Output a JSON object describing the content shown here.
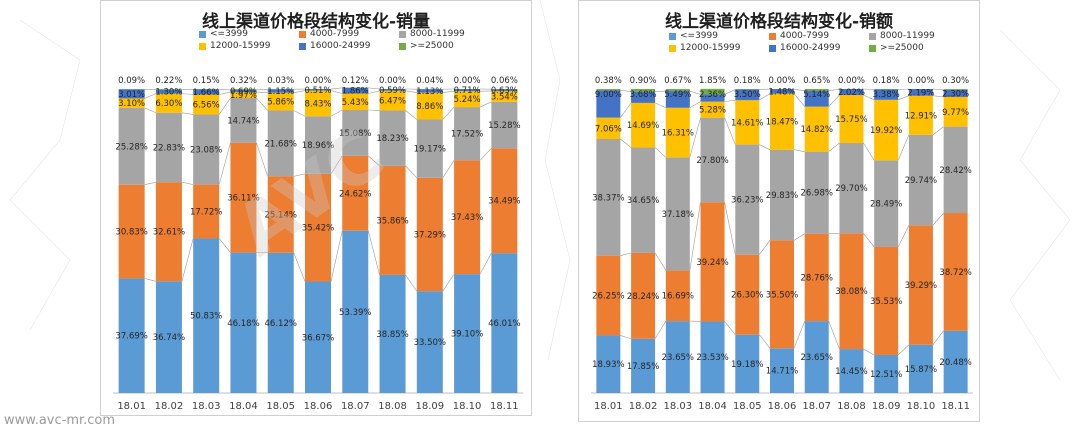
{
  "website": "www.avc-mr.com",
  "watermark": "AVC",
  "colors": {
    "c1": "#5b9bd5",
    "c2": "#ed7d31",
    "c3": "#a5a5a5",
    "c4": "#ffc000",
    "c5": "#4472c4",
    "c6": "#70ad47"
  },
  "chart_data": [
    {
      "type": "bar",
      "stacked": true,
      "title": "线上渠道价格段结构变化-销量",
      "categories": [
        "18.01",
        "18.02",
        "18.03",
        "18.04",
        "18.05",
        "18.06",
        "18.07",
        "18.08",
        "18.09",
        "18.10",
        "18.11"
      ],
      "ylim": [
        0,
        100
      ],
      "series": [
        {
          "name": "<=3999",
          "labels": [
            "37.69%",
            "36.74%",
            "50.83%",
            "46.18%",
            "46.12%",
            "36.67%",
            "53.39%",
            "38.85%",
            "33.50%",
            "39.10%",
            "46.01%"
          ],
          "values": [
            37.69,
            36.74,
            50.83,
            46.18,
            46.12,
            36.67,
            53.39,
            38.85,
            33.5,
            39.1,
            46.01
          ]
        },
        {
          "name": "4000-7999",
          "labels": [
            "30.83%",
            "32.61%",
            "17.72%",
            "36.11%",
            "25.14%",
            "35.42%",
            "24.62%",
            "35.86%",
            "37.29%",
            "37.43%",
            "34.49%"
          ],
          "values": [
            30.83,
            32.61,
            17.72,
            36.11,
            25.14,
            35.42,
            24.62,
            35.86,
            37.29,
            37.43,
            34.49
          ]
        },
        {
          "name": "8000-11999",
          "labels": [
            "25.28%",
            "22.83%",
            "23.08%",
            "14.74%",
            "21.68%",
            "18.96%",
            "15.08%",
            "18.23%",
            "19.17%",
            "17.52%",
            "15.28%"
          ],
          "values": [
            25.28,
            22.83,
            23.08,
            14.74,
            21.68,
            18.96,
            15.08,
            18.23,
            19.17,
            17.52,
            15.28
          ]
        },
        {
          "name": "12000-15999",
          "labels": [
            "3.10%",
            "6.30%",
            "6.56%",
            "1.97%",
            "5.86%",
            "8.43%",
            "5.43%",
            "6.47%",
            "8.86%",
            "5.24%",
            "3.54%"
          ],
          "values": [
            3.1,
            6.3,
            6.56,
            1.97,
            5.86,
            8.43,
            5.43,
            6.47,
            8.86,
            5.24,
            3.54
          ]
        },
        {
          "name": "16000-24999",
          "labels": [
            "3.01%",
            "1.30%",
            "1.66%",
            "0.69%",
            "1.15%",
            "0.51%",
            "1.86%",
            "0.59%",
            "1.13%",
            "0.71%",
            "0.63%"
          ],
          "values": [
            3.01,
            1.3,
            1.66,
            0.69,
            1.15,
            0.51,
            1.86,
            0.59,
            1.13,
            0.71,
            0.63
          ]
        },
        {
          "name": ">=25000",
          "labels": [
            "0.09%",
            "0.22%",
            "0.15%",
            "0.32%",
            "0.03%",
            "0.00%",
            "0.12%",
            "0.00%",
            "0.04%",
            "0.00%",
            "0.06%"
          ],
          "values": [
            0.09,
            0.22,
            0.15,
            0.32,
            0.03,
            0.0,
            0.12,
            0.0,
            0.04,
            0.0,
            0.06
          ]
        }
      ]
    },
    {
      "type": "bar",
      "stacked": true,
      "title": "线上渠道价格段结构变化-销额",
      "categories": [
        "18.01",
        "18.02",
        "18.03",
        "18.04",
        "18.05",
        "18.06",
        "18.07",
        "18.08",
        "18.09",
        "18.10",
        "18.11"
      ],
      "ylim": [
        0,
        100
      ],
      "series": [
        {
          "name": "<=3999",
          "labels": [
            "18.93%",
            "17.85%",
            "23.65%",
            "23.53%",
            "19.18%",
            "14.71%",
            "23.65%",
            "14.45%",
            "12.51%",
            "15.87%",
            "20.48%"
          ],
          "values": [
            18.93,
            17.85,
            23.65,
            23.53,
            19.18,
            14.71,
            23.65,
            14.45,
            12.51,
            15.87,
            20.48
          ]
        },
        {
          "name": "4000-7999",
          "labels": [
            "26.25%",
            "28.24%",
            "16.69%",
            "39.24%",
            "26.30%",
            "35.50%",
            "28.76%",
            "38.08%",
            "35.53%",
            "39.29%",
            "38.72%"
          ],
          "values": [
            26.25,
            28.24,
            16.69,
            39.24,
            26.3,
            35.5,
            28.76,
            38.08,
            35.53,
            39.29,
            38.72
          ]
        },
        {
          "name": "8000-11999",
          "labels": [
            "38.37%",
            "34.65%",
            "37.18%",
            "27.80%",
            "36.23%",
            "29.83%",
            "26.98%",
            "29.70%",
            "28.49%",
            "29.74%",
            "28.42%"
          ],
          "values": [
            38.37,
            34.65,
            37.18,
            27.8,
            36.23,
            29.83,
            26.98,
            29.7,
            28.49,
            29.74,
            28.42
          ]
        },
        {
          "name": "12000-15999",
          "labels": [
            "7.06%",
            "14.69%",
            "16.31%",
            "5.28%",
            "14.61%",
            "18.47%",
            "14.82%",
            "15.75%",
            "19.92%",
            "12.91%",
            "9.77%"
          ],
          "values": [
            7.06,
            14.69,
            16.31,
            5.28,
            14.61,
            18.47,
            14.82,
            15.75,
            19.92,
            12.91,
            9.77
          ]
        },
        {
          "name": "16000-24999",
          "labels": [
            "9.00%",
            "3.68%",
            "5.49%",
            "2.36%",
            "3.50%",
            "1.48%",
            "5.14%",
            "2.02%",
            "3.38%",
            "2.19%",
            "2.30%"
          ],
          "values": [
            9.0,
            3.68,
            5.49,
            2.36,
            3.5,
            1.48,
            5.14,
            2.02,
            3.38,
            2.19,
            2.3
          ]
        },
        {
          "name": ">=25000",
          "labels": [
            "0.38%",
            "0.90%",
            "0.67%",
            "1.85%",
            "0.18%",
            "0.00%",
            "0.65%",
            "0.00%",
            "0.18%",
            "0.00%",
            "0.30%"
          ],
          "values": [
            0.38,
            0.9,
            0.67,
            1.85,
            0.18,
            0.0,
            0.65,
            0.0,
            0.18,
            0.0,
            0.3
          ]
        }
      ]
    }
  ]
}
